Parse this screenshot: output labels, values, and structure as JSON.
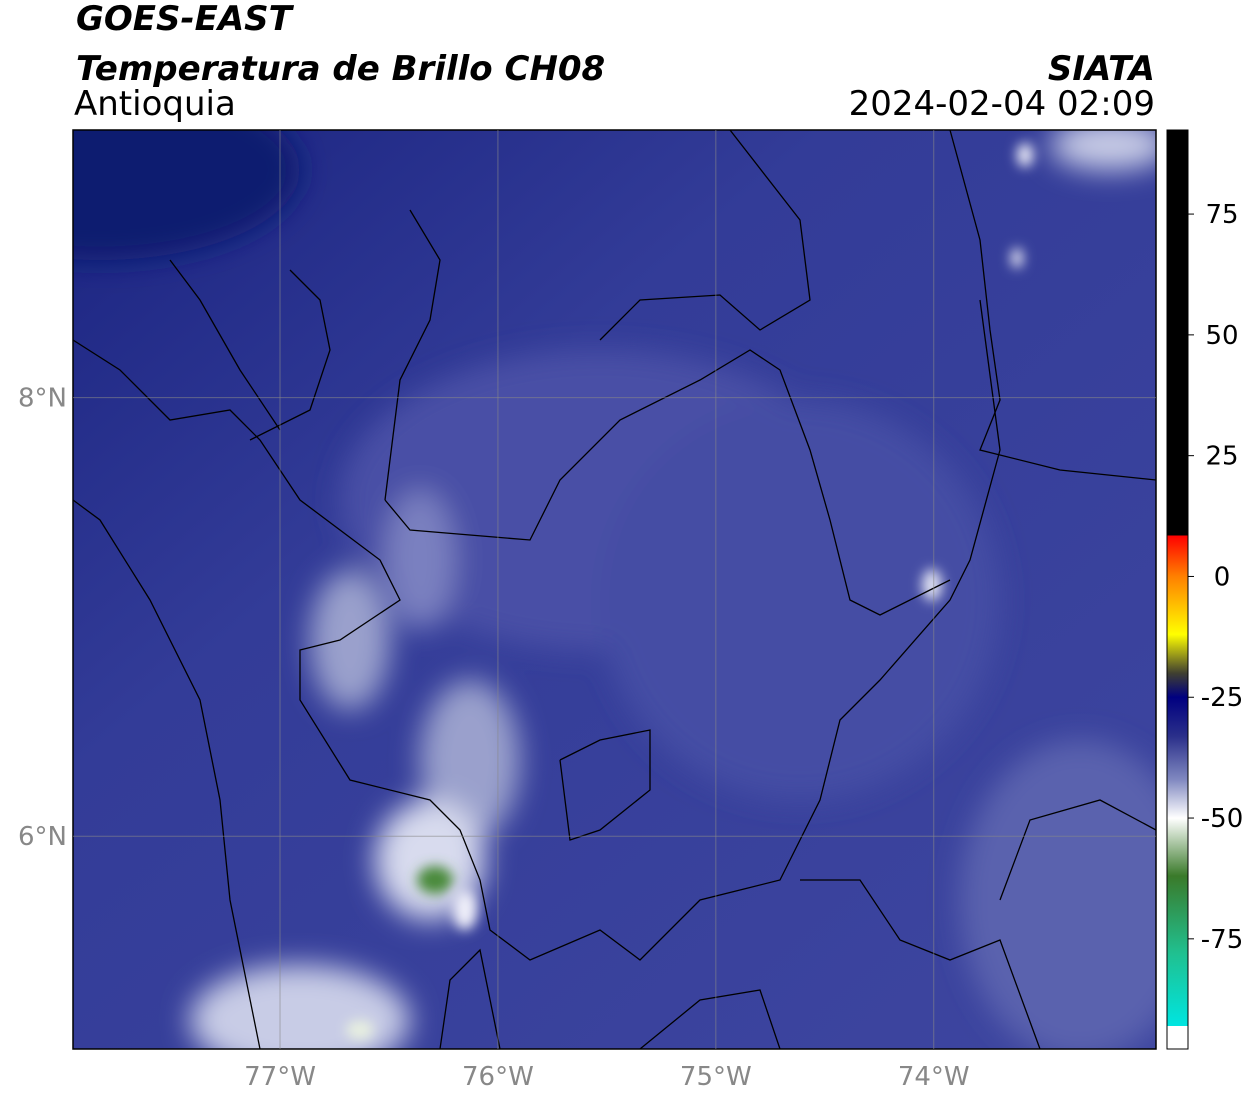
{
  "header": {
    "title": "GOES-EAST",
    "product": "Temperatura de Brillo CH08",
    "region": "Antioquia",
    "brand": "SIATA",
    "datetime": "2024-02-04 02:09"
  },
  "map": {
    "xlim": [
      -77.95,
      -72.98
    ],
    "ylim": [
      5.03,
      9.22
    ],
    "xticks": [
      {
        "value": -77,
        "label": "77°W"
      },
      {
        "value": -76,
        "label": "76°W"
      },
      {
        "value": -75,
        "label": "75°W"
      },
      {
        "value": -74,
        "label": "74°W"
      }
    ],
    "yticks": [
      {
        "value": 8,
        "label": "8°N"
      },
      {
        "value": 6,
        "label": "6°N"
      }
    ],
    "grid": true
  },
  "colorbar": {
    "lim": [
      -97.8,
      92.4
    ],
    "ticks": [
      75,
      50,
      25,
      0,
      -25,
      -50,
      -75
    ],
    "stops": [
      {
        "value": 92.4,
        "color": "#000000"
      },
      {
        "value": 8.5,
        "color": "#000000"
      },
      {
        "value": 8.5,
        "color": "#ff0000"
      },
      {
        "value": 0,
        "color": "#ff8000"
      },
      {
        "value": -12,
        "color": "#ffff00"
      },
      {
        "value": -20,
        "color": "#404030"
      },
      {
        "value": -25,
        "color": "#000080"
      },
      {
        "value": -33,
        "color": "#2a2f8a"
      },
      {
        "value": -42,
        "color": "#8088c0"
      },
      {
        "value": -50,
        "color": "#ffffff"
      },
      {
        "value": -62,
        "color": "#3a7a2a"
      },
      {
        "value": -78,
        "color": "#20c090"
      },
      {
        "value": -93,
        "color": "#00e5e0"
      },
      {
        "value": -93,
        "color": "#ffffff"
      },
      {
        "value": -97.8,
        "color": "#ffffff"
      }
    ]
  }
}
